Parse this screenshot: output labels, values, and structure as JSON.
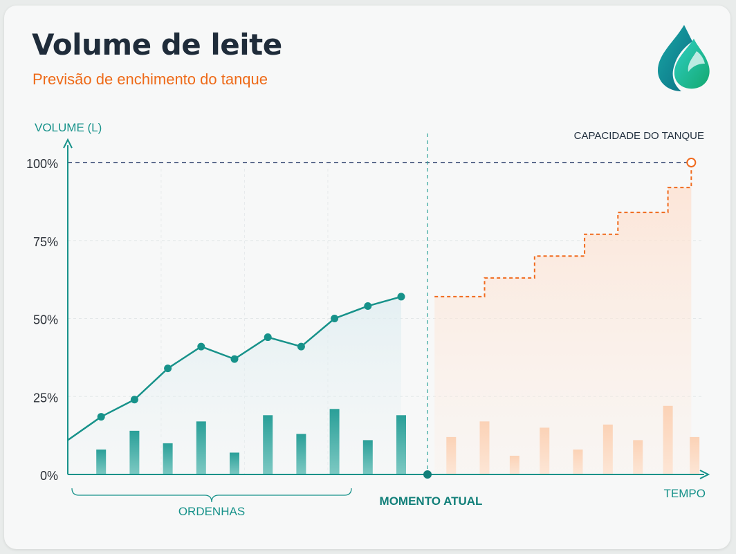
{
  "header": {
    "title": "Volume de leite",
    "subtitle": "Previsão de enchimento do tanque"
  },
  "logo": {
    "icon": "water-drop-icon"
  },
  "colors": {
    "actual": "#17928a",
    "forecast": "#f06a1d",
    "capacity_line": "#2c3e6b",
    "title": "#1f2c3a",
    "subtitle": "#ee6a18"
  },
  "chart_data": {
    "type": "line",
    "ylabel": "VOLUME (L)",
    "xlabel": "TEMPO",
    "ylim": [
      0,
      100
    ],
    "yticks": [
      "100%",
      "75%",
      "50%",
      "25%",
      "0%"
    ],
    "ytick_values": [
      100,
      75,
      50,
      25,
      0
    ],
    "grid": true,
    "capacity": {
      "label": "CAPACIDADE DO TANQUE",
      "value": 100
    },
    "current_moment_label": "MOMENTO ATUAL",
    "milkings_label": "ORDENHAS",
    "actual_series": {
      "x": [
        0,
        1,
        2,
        3,
        4,
        5,
        6,
        7,
        8,
        9,
        10
      ],
      "values": [
        11,
        18.5,
        24,
        34,
        41,
        37,
        44,
        41,
        50,
        54,
        57
      ]
    },
    "actual_bars": {
      "x": [
        1,
        2,
        3,
        4,
        5,
        6,
        7,
        8,
        9,
        10
      ],
      "values": [
        8,
        14,
        10,
        17,
        7,
        19,
        13,
        21,
        11,
        19
      ]
    },
    "forecast_steps": {
      "x": [
        11,
        12.5,
        14,
        15.5,
        16.5,
        18,
        18.7
      ],
      "values": [
        57,
        63,
        70,
        77,
        84,
        92,
        100
      ]
    },
    "forecast_bars": {
      "x": [
        11.5,
        12.5,
        13.4,
        14.3,
        15.3,
        16.2,
        17.1,
        18,
        18.8
      ],
      "values": [
        12,
        17,
        6,
        15,
        8,
        16,
        11,
        22,
        12
      ]
    }
  }
}
